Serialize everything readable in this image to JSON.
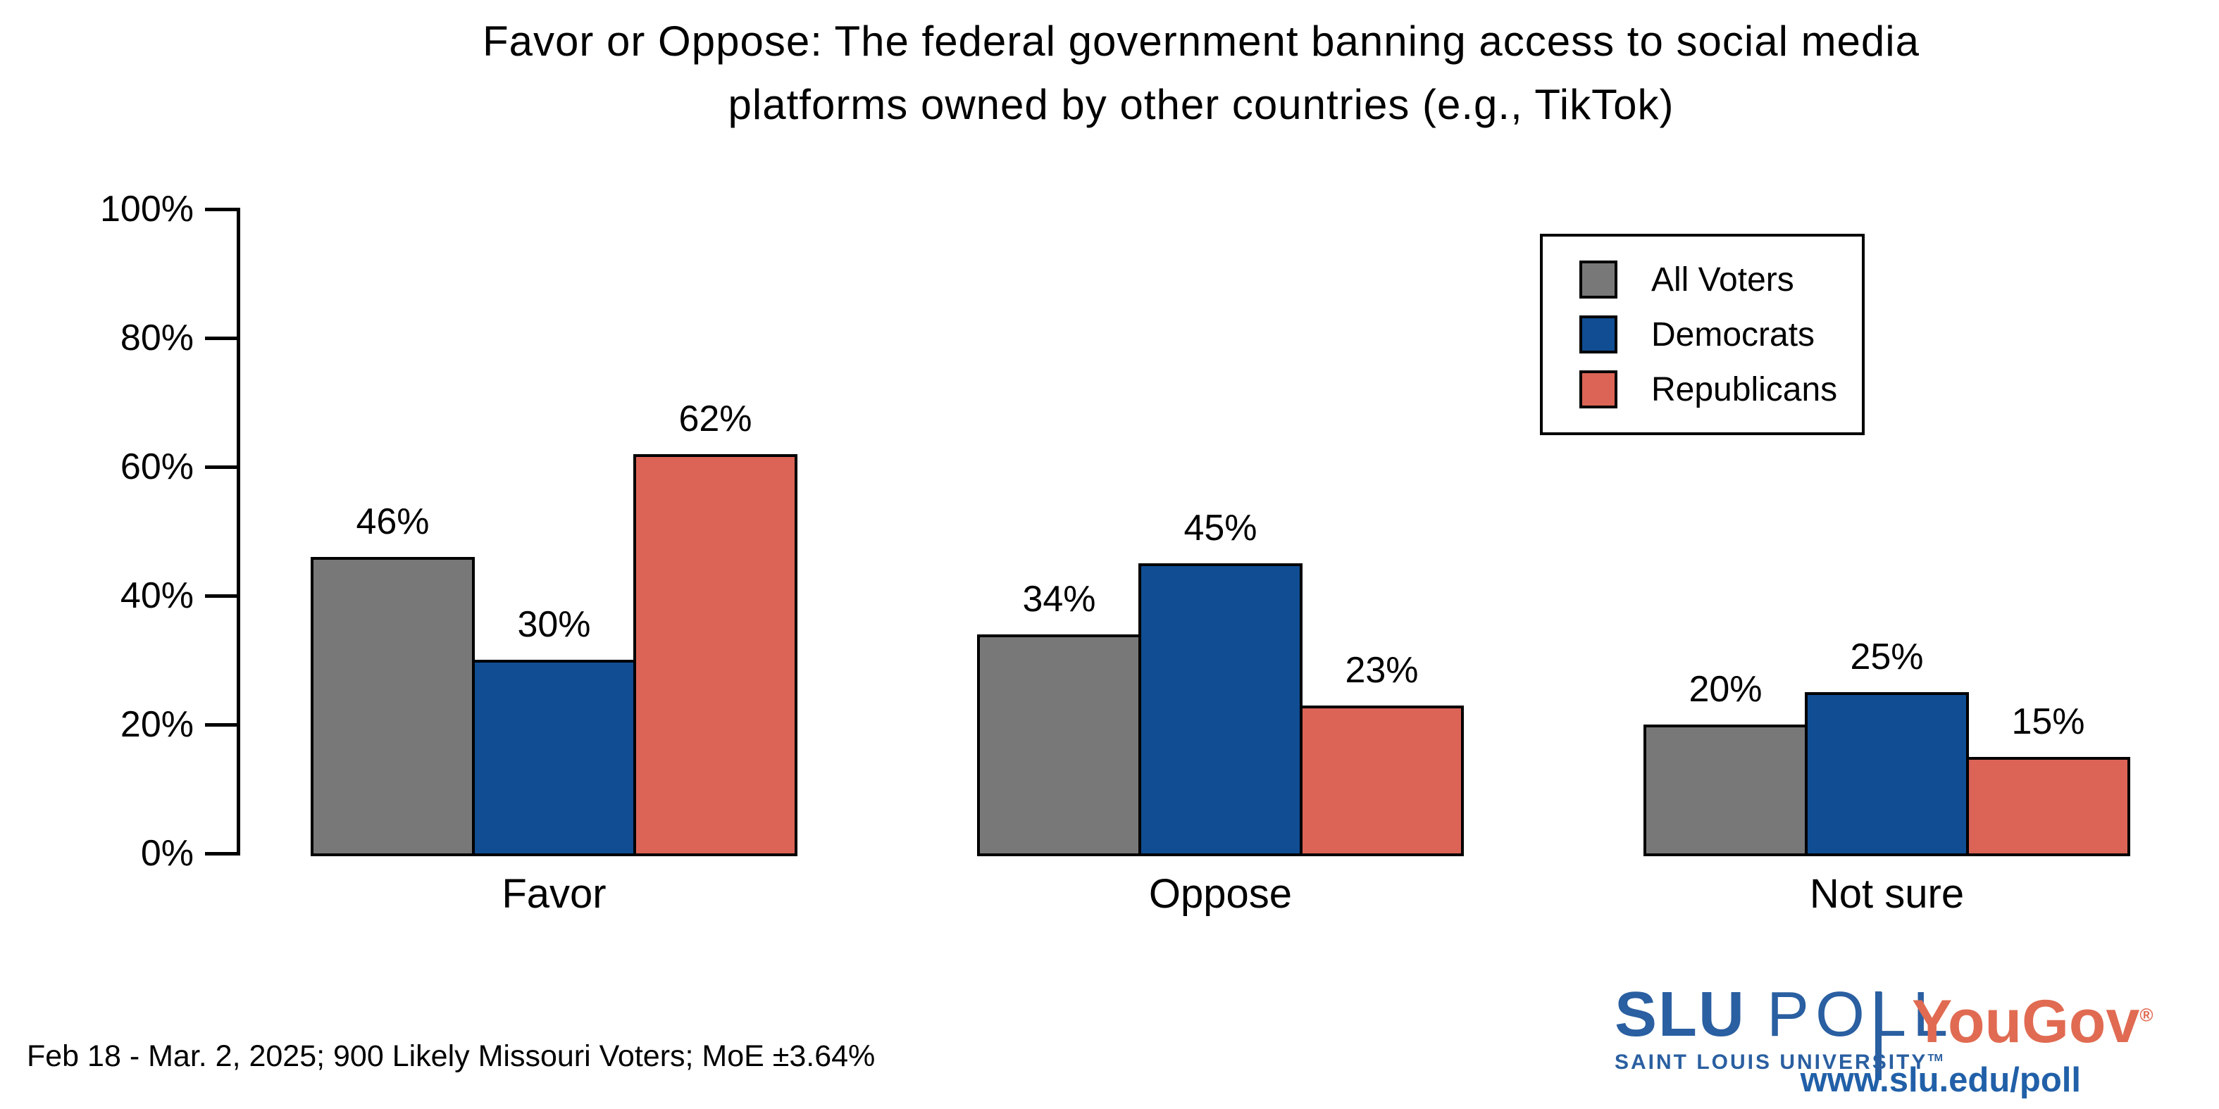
{
  "title_lines": [
    "Favor or Oppose: The federal government banning access to social media",
    "platforms owned by other countries (e.g., TikTok)"
  ],
  "footer_note": "Feb 18 - Mar. 2, 2025; 900 Likely Missouri Voters; MoE ±3.64%",
  "branding": {
    "slu": "SLU",
    "poll": "POLL",
    "slu_subtitle": "SAINT LOUIS UNIVERSITY",
    "trademark": "TM",
    "yougov": "YouGov",
    "registered": "®",
    "url": "www.slu.edu/poll",
    "slu_blue": "#2A5FA1",
    "yougov_red": "#E06B52",
    "url_blue": "#2160A8"
  },
  "chart_data": {
    "type": "bar",
    "title": "Favor or Oppose: The federal government banning access to social media platforms owned by other countries (e.g., TikTok)",
    "categories": [
      "Favor",
      "Oppose",
      "Not sure"
    ],
    "series": [
      {
        "name": "All Voters",
        "color": "#787878",
        "values": [
          46,
          34,
          20
        ]
      },
      {
        "name": "Democrats",
        "color": "#104D92",
        "values": [
          30,
          45,
          25
        ]
      },
      {
        "name": "Republicans",
        "color": "#DB6456",
        "values": [
          62,
          23,
          15
        ]
      }
    ],
    "value_labels": [
      [
        "46%",
        "34%",
        "20%"
      ],
      [
        "30%",
        "45%",
        "25%"
      ],
      [
        "62%",
        "23%",
        "15%"
      ]
    ],
    "xlabel": "",
    "ylabel": "",
    "ylim": [
      0,
      100
    ],
    "y_ticks": [
      0,
      20,
      40,
      60,
      80,
      100
    ],
    "y_tick_labels": [
      "0%",
      "20%",
      "40%",
      "60%",
      "80%",
      "100%"
    ],
    "grid": false,
    "legend_position": "top-right",
    "bar_border_color": "#000000"
  }
}
